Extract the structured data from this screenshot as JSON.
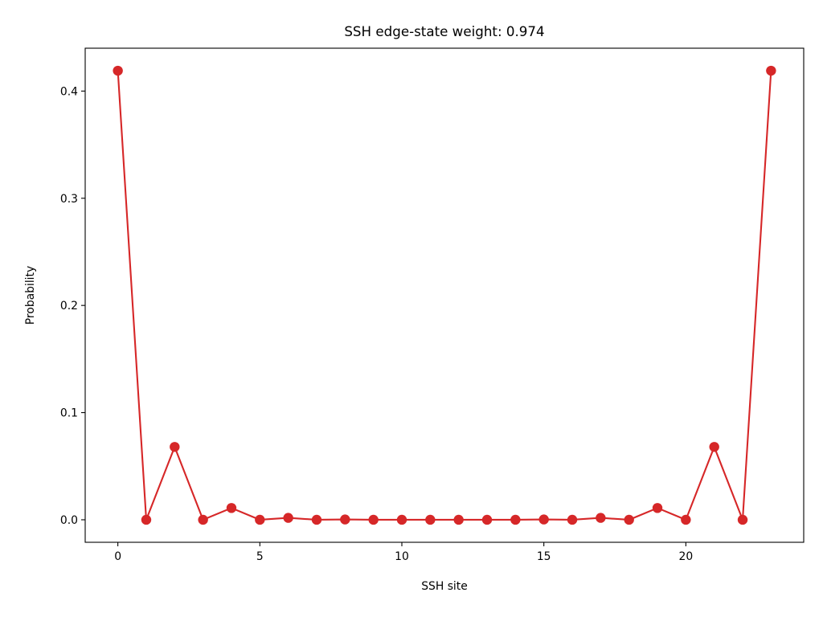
{
  "chart_data": {
    "type": "line",
    "title": "SSH edge-state weight: 0.974",
    "xlabel": "SSH site",
    "ylabel": "Probability",
    "xlim": [
      -1.15,
      24.15
    ],
    "ylim": [
      -0.021,
      0.44
    ],
    "xticks": [
      0,
      5,
      10,
      15,
      20
    ],
    "xtick_labels": [
      "0",
      "5",
      "10",
      "15",
      "20"
    ],
    "yticks": [
      0.0,
      0.1,
      0.2,
      0.3,
      0.4
    ],
    "ytick_labels": [
      "0.0",
      "0.1",
      "0.2",
      "0.3",
      "0.4"
    ],
    "grid": false,
    "legend": "none",
    "series": [
      {
        "color": "#d62728",
        "marker": "circle",
        "x": [
          0,
          1,
          2,
          3,
          4,
          5,
          6,
          7,
          8,
          9,
          10,
          11,
          12,
          13,
          14,
          15,
          16,
          17,
          18,
          19,
          20,
          21,
          22,
          23
        ],
        "values": [
          0.419,
          0.0,
          0.068,
          0.0,
          0.011,
          0.0,
          0.0018,
          0.0,
          0.0003,
          0.0,
          0.0,
          0.0,
          0.0,
          0.0,
          0.0,
          0.0003,
          0.0,
          0.0018,
          0.0,
          0.011,
          0.0,
          0.068,
          0.0,
          0.419
        ]
      }
    ]
  }
}
